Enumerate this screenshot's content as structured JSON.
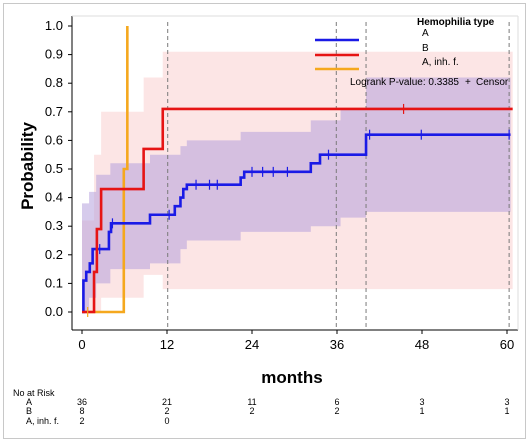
{
  "chart_data": {
    "type": "line",
    "subtype": "kaplan-meier",
    "xlabel": "months",
    "ylabel": "Probability",
    "xlim": [
      0,
      60
    ],
    "ylim": [
      0,
      1.0
    ],
    "x_ticks": [
      "0",
      "12",
      "24",
      "36",
      "48",
      "60"
    ],
    "y_ticks": [
      "0.0",
      "0.1",
      "0.2",
      "0.3",
      "0.4",
      "0.5",
      "0.6",
      "0.7",
      "0.8",
      "0.9",
      "1.0"
    ],
    "legend": {
      "title": "Hemophilia type",
      "position": "top-right",
      "logrank_text": "Logrank P-value: 0.3385",
      "censor_label": "Censor"
    },
    "series": [
      {
        "name": "A",
        "color": "#1a1ae6",
        "band_color": "#b4a0dc",
        "steps": [
          [
            0,
            0.0
          ],
          [
            0.2,
            0.11
          ],
          [
            0.6,
            0.14
          ],
          [
            1.1,
            0.17
          ],
          [
            1.5,
            0.22
          ],
          [
            3.8,
            0.28
          ],
          [
            4.1,
            0.31
          ],
          [
            9.6,
            0.34
          ],
          [
            13.1,
            0.37
          ],
          [
            13.9,
            0.4
          ],
          [
            14.3,
            0.43
          ],
          [
            14.8,
            0.445
          ],
          [
            22.4,
            0.47
          ],
          [
            22.9,
            0.49
          ],
          [
            32.3,
            0.52
          ],
          [
            33.6,
            0.55
          ],
          [
            40.1,
            0.62
          ],
          [
            60.5,
            0.62
          ]
        ],
        "band_upper": [
          [
            0,
            0.38
          ],
          [
            1,
            0.42
          ],
          [
            2,
            0.48
          ],
          [
            4,
            0.52
          ],
          [
            9.6,
            0.55
          ],
          [
            13.9,
            0.58
          ],
          [
            14.8,
            0.6
          ],
          [
            22.4,
            0.63
          ],
          [
            32.3,
            0.67
          ],
          [
            36.5,
            0.71
          ],
          [
            40.1,
            0.82
          ],
          [
            60.5,
            0.82
          ]
        ],
        "band_lower": [
          [
            0,
            0.0
          ],
          [
            1,
            0.05
          ],
          [
            2,
            0.1
          ],
          [
            4,
            0.15
          ],
          [
            9.6,
            0.17
          ],
          [
            13.9,
            0.22
          ],
          [
            14.8,
            0.25
          ],
          [
            22.4,
            0.28
          ],
          [
            32.3,
            0.3
          ],
          [
            36.5,
            0.33
          ],
          [
            40.1,
            0.35
          ],
          [
            60.5,
            0.35
          ]
        ],
        "censor_times": [
          [
            2.5,
            0.22
          ],
          [
            4.3,
            0.31
          ],
          [
            12.3,
            0.34
          ],
          [
            16.1,
            0.445
          ],
          [
            18.0,
            0.445
          ],
          [
            19.1,
            0.445
          ],
          [
            24.0,
            0.49
          ],
          [
            25.5,
            0.49
          ],
          [
            27.0,
            0.49
          ],
          [
            29.0,
            0.49
          ],
          [
            34.8,
            0.55
          ],
          [
            40.6,
            0.62
          ],
          [
            47.9,
            0.62
          ],
          [
            60.3,
            0.62
          ]
        ]
      },
      {
        "name": "B",
        "color": "#e61414",
        "band_color": "#fbdcdc",
        "steps": [
          [
            0,
            0.0
          ],
          [
            1.0,
            0.0
          ],
          [
            1.7,
            0.14
          ],
          [
            2.1,
            0.29
          ],
          [
            2.7,
            0.43
          ],
          [
            8.7,
            0.57
          ],
          [
            11.4,
            0.71
          ],
          [
            60.8,
            0.71
          ]
        ],
        "band_upper": [
          [
            0,
            0.32
          ],
          [
            1.7,
            0.55
          ],
          [
            2.7,
            0.7
          ],
          [
            8.7,
            0.82
          ],
          [
            11.4,
            0.91
          ],
          [
            60.8,
            0.91
          ]
        ],
        "band_lower": [
          [
            0,
            0.0
          ],
          [
            1.7,
            0.0
          ],
          [
            2.7,
            0.05
          ],
          [
            8.7,
            0.13
          ],
          [
            11.4,
            0.08
          ],
          [
            60.8,
            0.08
          ]
        ],
        "censor_times": [
          [
            45.4,
            0.71
          ]
        ]
      },
      {
        "name": "A, inh. f.",
        "color": "#f5a81e",
        "steps": [
          [
            0.3,
            0.0
          ],
          [
            5.9,
            0.5
          ],
          [
            6.4,
            1.0
          ]
        ],
        "censor_times": [
          [
            0.8,
            0.0
          ]
        ]
      }
    ],
    "reference_lines_x": [
      12.1,
      35.9,
      40.1,
      60.3
    ],
    "number_at_risk": {
      "label": "No at Risk",
      "rows": [
        {
          "group": "A",
          "values": [
            "36",
            "21",
            "11",
            "6",
            "3",
            "3"
          ]
        },
        {
          "group": "B",
          "values": [
            "8",
            "2",
            "2",
            "2",
            "1",
            "1"
          ]
        },
        {
          "group": "A, inh. f.",
          "values": [
            "2",
            "0",
            "",
            "",
            "",
            ""
          ]
        }
      ]
    }
  }
}
